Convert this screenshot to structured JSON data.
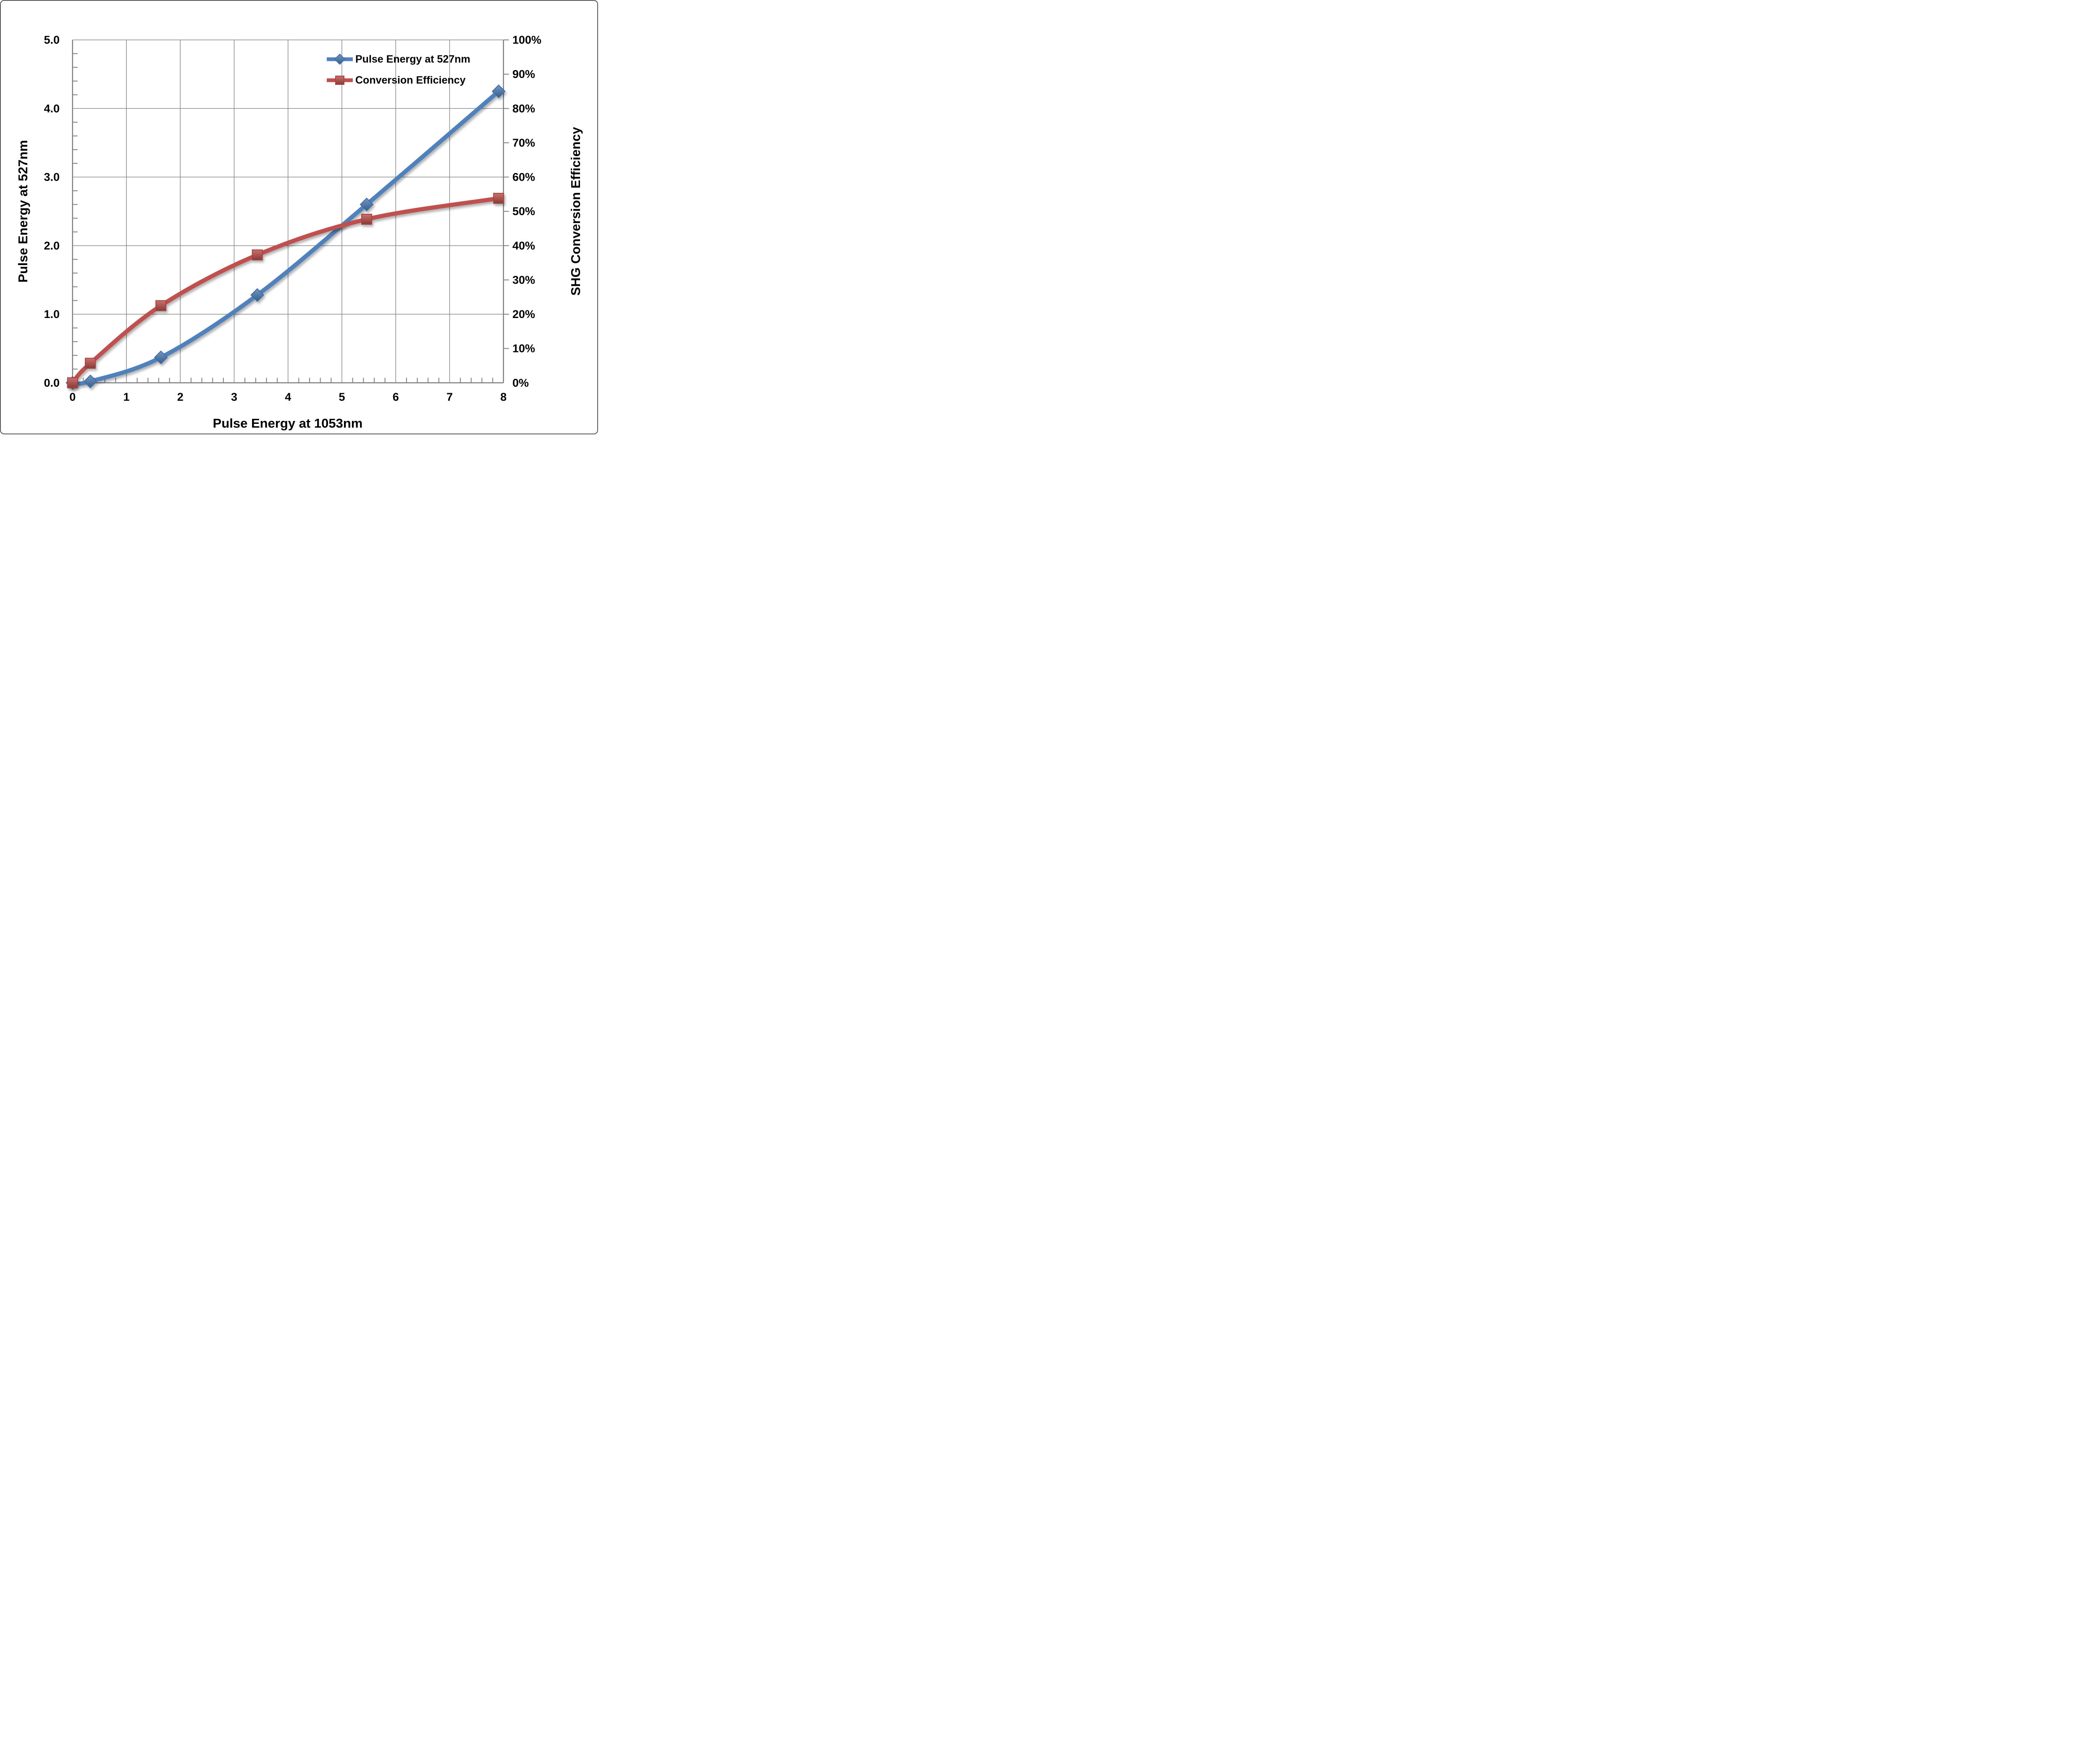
{
  "chart_data": {
    "type": "line",
    "title": "",
    "x": [
      0,
      0.33,
      1.64,
      3.43,
      5.46,
      7.91
    ],
    "series": [
      {
        "name": "Pulse Energy at 527nm",
        "axis": "left",
        "color": "#4F81BD",
        "marker": "diamond",
        "values": [
          0.0,
          0.02,
          0.37,
          1.28,
          2.6,
          4.25
        ]
      },
      {
        "name": "Conversion Efficiency",
        "axis": "right",
        "color": "#C0504D",
        "marker": "square",
        "values": [
          0.0,
          5.7,
          22.5,
          37.3,
          47.7,
          53.8
        ]
      }
    ],
    "xlabel": "Pulse Energy at 1053nm",
    "ylabel_left": "Pulse Energy at 527nm",
    "ylabel_right": "SHG Conversion Efficiency",
    "xlim": [
      0,
      8
    ],
    "ylim_left": [
      0,
      5
    ],
    "ylim_right": [
      0,
      100
    ],
    "x_ticks": [
      "0",
      "1",
      "2",
      "3",
      "4",
      "5",
      "6",
      "7",
      "8"
    ],
    "y_ticks_left": [
      "0.0",
      "1.0",
      "2.0",
      "3.0",
      "4.0",
      "5.0"
    ],
    "y_ticks_right": [
      "0%",
      "10%",
      "20%",
      "30%",
      "40%",
      "50%",
      "60%",
      "70%",
      "80%",
      "90%",
      "100%"
    ],
    "x_minor_step": 0.2,
    "y_left_minor_step": 0.2,
    "grid": true,
    "legend_position": "inside-top-right",
    "smoothed_lines": true,
    "colors": {
      "grid": "#8C8C8C",
      "axis": "#7F7F7F",
      "tick_text": "#000000",
      "background": "#FFFFFF",
      "border": "#5A5A5A"
    }
  }
}
